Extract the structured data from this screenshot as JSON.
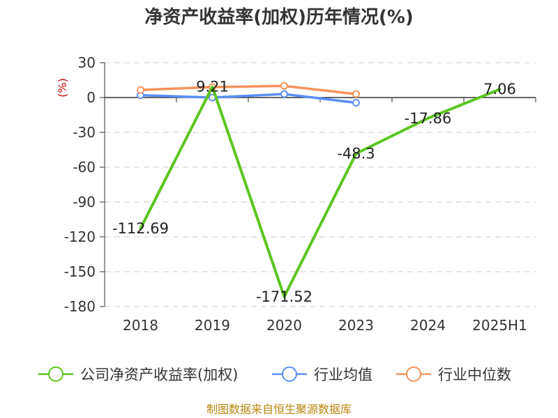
{
  "chart_data": {
    "type": "line",
    "title": "净资产收益率(加权)历年情况(%)",
    "ylabel": "(%)",
    "categories": [
      "2018",
      "2019",
      "2020",
      "2023",
      "2024",
      "2025H1"
    ],
    "yticks": [
      30,
      0,
      -30,
      -60,
      -90,
      -120,
      -150,
      -180
    ],
    "ylim": [
      -180,
      30
    ],
    "grid": true,
    "legend_position": "bottom",
    "series": [
      {
        "name": "公司净资产收益率(加权)",
        "color": "#5cc41f",
        "values": [
          -112.69,
          9.21,
          -171.52,
          -48.3,
          -17.86,
          7.06
        ],
        "labels": [
          "-112.69",
          "9.21",
          "-171.52",
          "-48.3",
          "-17.86",
          "7.06"
        ]
      },
      {
        "name": "行业均值",
        "color": "#5b8ff9",
        "values": [
          2,
          0,
          3,
          -4.5,
          null,
          null
        ]
      },
      {
        "name": "行业中位数",
        "color": "#f7925b",
        "values": [
          6.5,
          9,
          10,
          3,
          null,
          null
        ]
      }
    ]
  },
  "source": "制图数据来自恒生聚源数据库"
}
